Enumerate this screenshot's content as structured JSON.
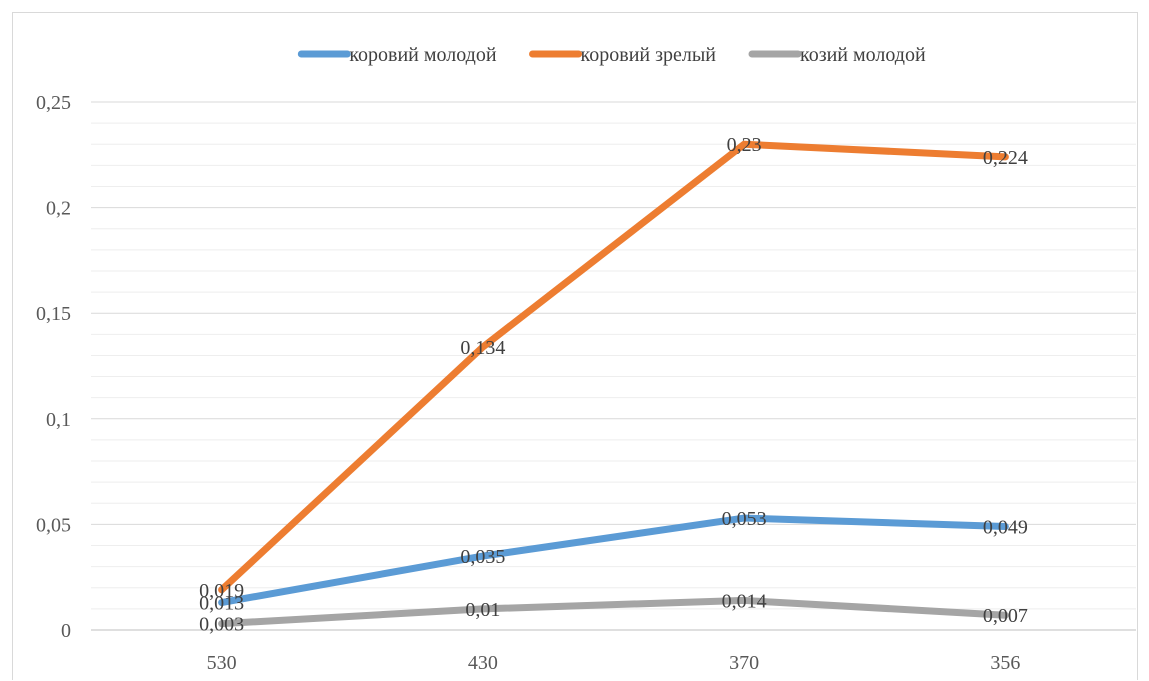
{
  "chart_data": {
    "type": "line",
    "title": "",
    "xlabel": "",
    "ylabel": "",
    "categories": [
      "530",
      "430",
      "370",
      "356"
    ],
    "ylim": [
      0,
      0.25
    ],
    "y_ticks": [
      0,
      0.05,
      0.1,
      0.15,
      0.2,
      0.25
    ],
    "y_tick_labels": [
      "0",
      "0,05",
      "0,1",
      "0,15",
      "0,2",
      "0,25"
    ],
    "grid": {
      "major": true,
      "minor": true
    },
    "legend": "top",
    "series": [
      {
        "name": "коровий молодой",
        "color": "#5b9bd5",
        "values": [
          0.013,
          0.035,
          0.053,
          0.049
        ],
        "labels": [
          "0,013",
          "0,035",
          "0,053",
          "0,049"
        ]
      },
      {
        "name": "коровий зрелый",
        "color": "#ed7d31",
        "values": [
          0.019,
          0.134,
          0.23,
          0.224
        ],
        "labels": [
          "0,019",
          "0,134",
          "0,23",
          "0,224"
        ]
      },
      {
        "name": "козий молодой",
        "color": "#a5a5a5",
        "values": [
          0.003,
          0.01,
          0.014,
          0.007
        ],
        "labels": [
          "0,003",
          "0,01",
          "0,014",
          "0,007"
        ]
      }
    ]
  }
}
